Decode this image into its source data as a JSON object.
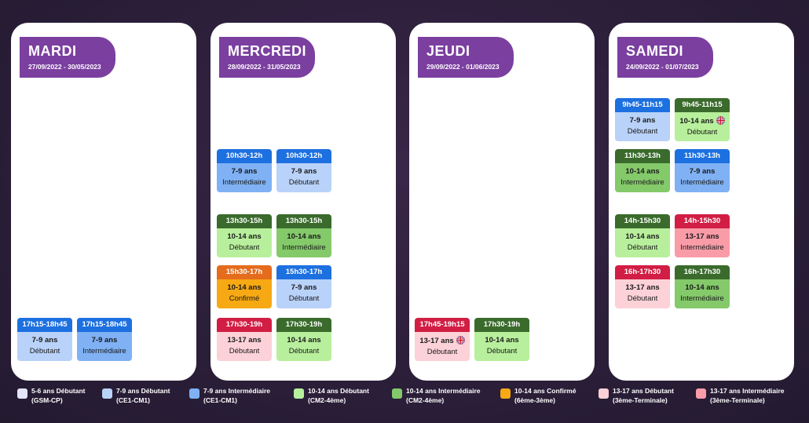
{
  "days": [
    {
      "name": "MARDI",
      "dates": "27/09/2022 - 30/05/2023",
      "slots": [
        {
          "time": "17h15-18h45",
          "age": "7-9 ans",
          "level": "Débutant",
          "head": "#1d70e0",
          "body": "#b9d2f9"
        },
        {
          "time": "17h15-18h45",
          "age": "7-9 ans",
          "level": "Intermédiaire",
          "head": "#1d70e0",
          "body": "#7fb1f4"
        }
      ]
    },
    {
      "name": "MERCREDI",
      "dates": "28/09/2022 - 31/05/2023",
      "slots": [
        {
          "time": "10h30-12h",
          "age": "7-9 ans",
          "level": "Intermédiaire",
          "head": "#1d70e0",
          "body": "#7fb1f4"
        },
        {
          "time": "10h30-12h",
          "age": "7-9 ans",
          "level": "Débutant",
          "head": "#1d70e0",
          "body": "#b9d2f9"
        },
        {
          "time": "13h30-15h",
          "age": "10-14 ans",
          "level": "Débutant",
          "head": "#3a6b2c",
          "body": "#b8ef9c"
        },
        {
          "time": "13h30-15h",
          "age": "10-14 ans",
          "level": "Intermédiaire",
          "head": "#3a6b2c",
          "body": "#84c96a"
        },
        {
          "time": "15h30-17h",
          "age": "10-14 ans",
          "level": "Confirmé",
          "head": "#e46c1c",
          "body": "#f6a913"
        },
        {
          "time": "15h30-17h",
          "age": "7-9 ans",
          "level": "Débutant",
          "head": "#1d70e0",
          "body": "#b9d2f9"
        },
        {
          "time": "17h30-19h",
          "age": "13-17 ans",
          "level": "Débutant",
          "head": "#d21e44",
          "body": "#fcd1d8"
        },
        {
          "time": "17h30-19h",
          "age": "10-14 ans",
          "level": "Débutant",
          "head": "#3a6b2c",
          "body": "#b8ef9c"
        }
      ]
    },
    {
      "name": "JEUDI",
      "dates": "29/09/2022 - 01/06/2023",
      "slots": [
        {
          "time": "17h45-19h15",
          "age": "13-17 ans",
          "level": "Débutant",
          "head": "#d21e44",
          "body": "#fcd1d8",
          "flag": true
        },
        {
          "time": "17h30-19h",
          "age": "10-14 ans",
          "level": "Débutant",
          "head": "#3a6b2c",
          "body": "#b8ef9c"
        }
      ]
    },
    {
      "name": "SAMEDI",
      "dates": "24/09/2022 - 01/07/2023",
      "slots": [
        {
          "time": "9h45-11h15",
          "age": "7-9 ans",
          "level": "Débutant",
          "head": "#1d70e0",
          "body": "#b9d2f9"
        },
        {
          "time": "9h45-11h15",
          "age": "10-14 ans",
          "level": "Débutant",
          "head": "#3a6b2c",
          "body": "#b8ef9c",
          "flag": true
        },
        {
          "time": "11h30-13h",
          "age": "10-14 ans",
          "level": "Intermédiaire",
          "head": "#3a6b2c",
          "body": "#84c96a"
        },
        {
          "time": "11h30-13h",
          "age": "7-9 ans",
          "level": "Intermédiaire",
          "head": "#1d70e0",
          "body": "#7fb1f4"
        },
        {
          "time": "14h-15h30",
          "age": "10-14 ans",
          "level": "Débutant",
          "head": "#3a6b2c",
          "body": "#b8ef9c"
        },
        {
          "time": "14h-15h30",
          "age": "13-17 ans",
          "level": "Intermédiaire",
          "head": "#d21e44",
          "body": "#f99ca8"
        },
        {
          "time": "16h-17h30",
          "age": "13-17 ans",
          "level": "Débutant",
          "head": "#d21e44",
          "body": "#fcd1d8"
        },
        {
          "time": "16h-17h30",
          "age": "10-14 ans",
          "level": "Intermédiaire",
          "head": "#3a6b2c",
          "body": "#84c96a"
        }
      ]
    }
  ],
  "legend": [
    {
      "line1": "5-6 ans Débutant",
      "line2": "(GSM-CP)",
      "color": "#e4e4fb"
    },
    {
      "line1": "7-9 ans Débutant",
      "line2": "(CE1-CM1)",
      "color": "#b9d2f9"
    },
    {
      "line1": "7-9 ans Intermédiaire",
      "line2": "(CE1-CM1)",
      "color": "#7fb1f4"
    },
    {
      "line1": "10-14 ans Débutant",
      "line2": "(CM2-4ème)",
      "color": "#b8ef9c"
    },
    {
      "line1": "10-14 ans Intermédiaire",
      "line2": "(CM2-4ème)",
      "color": "#84c96a"
    },
    {
      "line1": "10-14 ans Confirmé",
      "line2": "(6ème-3ème)",
      "color": "#f6a913"
    },
    {
      "line1": "13-17 ans Débutant",
      "line2": "(3ème-Terminale)",
      "color": "#fcd1d8"
    },
    {
      "line1": "13-17 ans Intermédiaire",
      "line2": "(3ème-Terminale)",
      "color": "#f99ca8"
    }
  ],
  "colors": {
    "header_purple": "#7b3fa0",
    "card_bg": "#ffffff"
  },
  "icons": {
    "flag": "uk-flag-icon"
  }
}
